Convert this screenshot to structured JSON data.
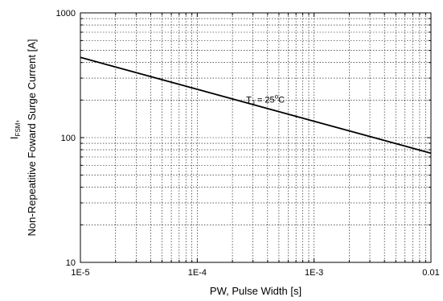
{
  "chart_data": {
    "type": "line",
    "x_scale": "log",
    "y_scale": "log",
    "xlim": [
      1e-05,
      0.01
    ],
    "ylim": [
      10,
      1000
    ],
    "grid": true,
    "xlabel": "PW, Pulse Width [s]",
    "ylabel_line1": "I",
    "ylabel_line1_sub": "FSM",
    "ylabel_line1_suffix": ",",
    "ylabel_line2": "Non-Repeatitive Foward Surge Current [A]",
    "x_ticks": [
      {
        "value": 1e-05,
        "label": "1E-5"
      },
      {
        "value": 0.0001,
        "label": "1E-4"
      },
      {
        "value": 0.001,
        "label": "1E-3"
      },
      {
        "value": 0.01,
        "label": "0.01"
      }
    ],
    "y_ticks": [
      {
        "value": 10,
        "label": "10"
      },
      {
        "value": 100,
        "label": "100"
      },
      {
        "value": 1000,
        "label": "1000"
      }
    ],
    "series": [
      {
        "x": [
          1e-05,
          0.01
        ],
        "y": [
          440,
          75
        ]
      }
    ],
    "annotation": {
      "x": 0.00025,
      "y": 180,
      "main": "T",
      "sub": "J",
      "rest": " = 25",
      "sup": "o",
      "unit": "C"
    }
  }
}
